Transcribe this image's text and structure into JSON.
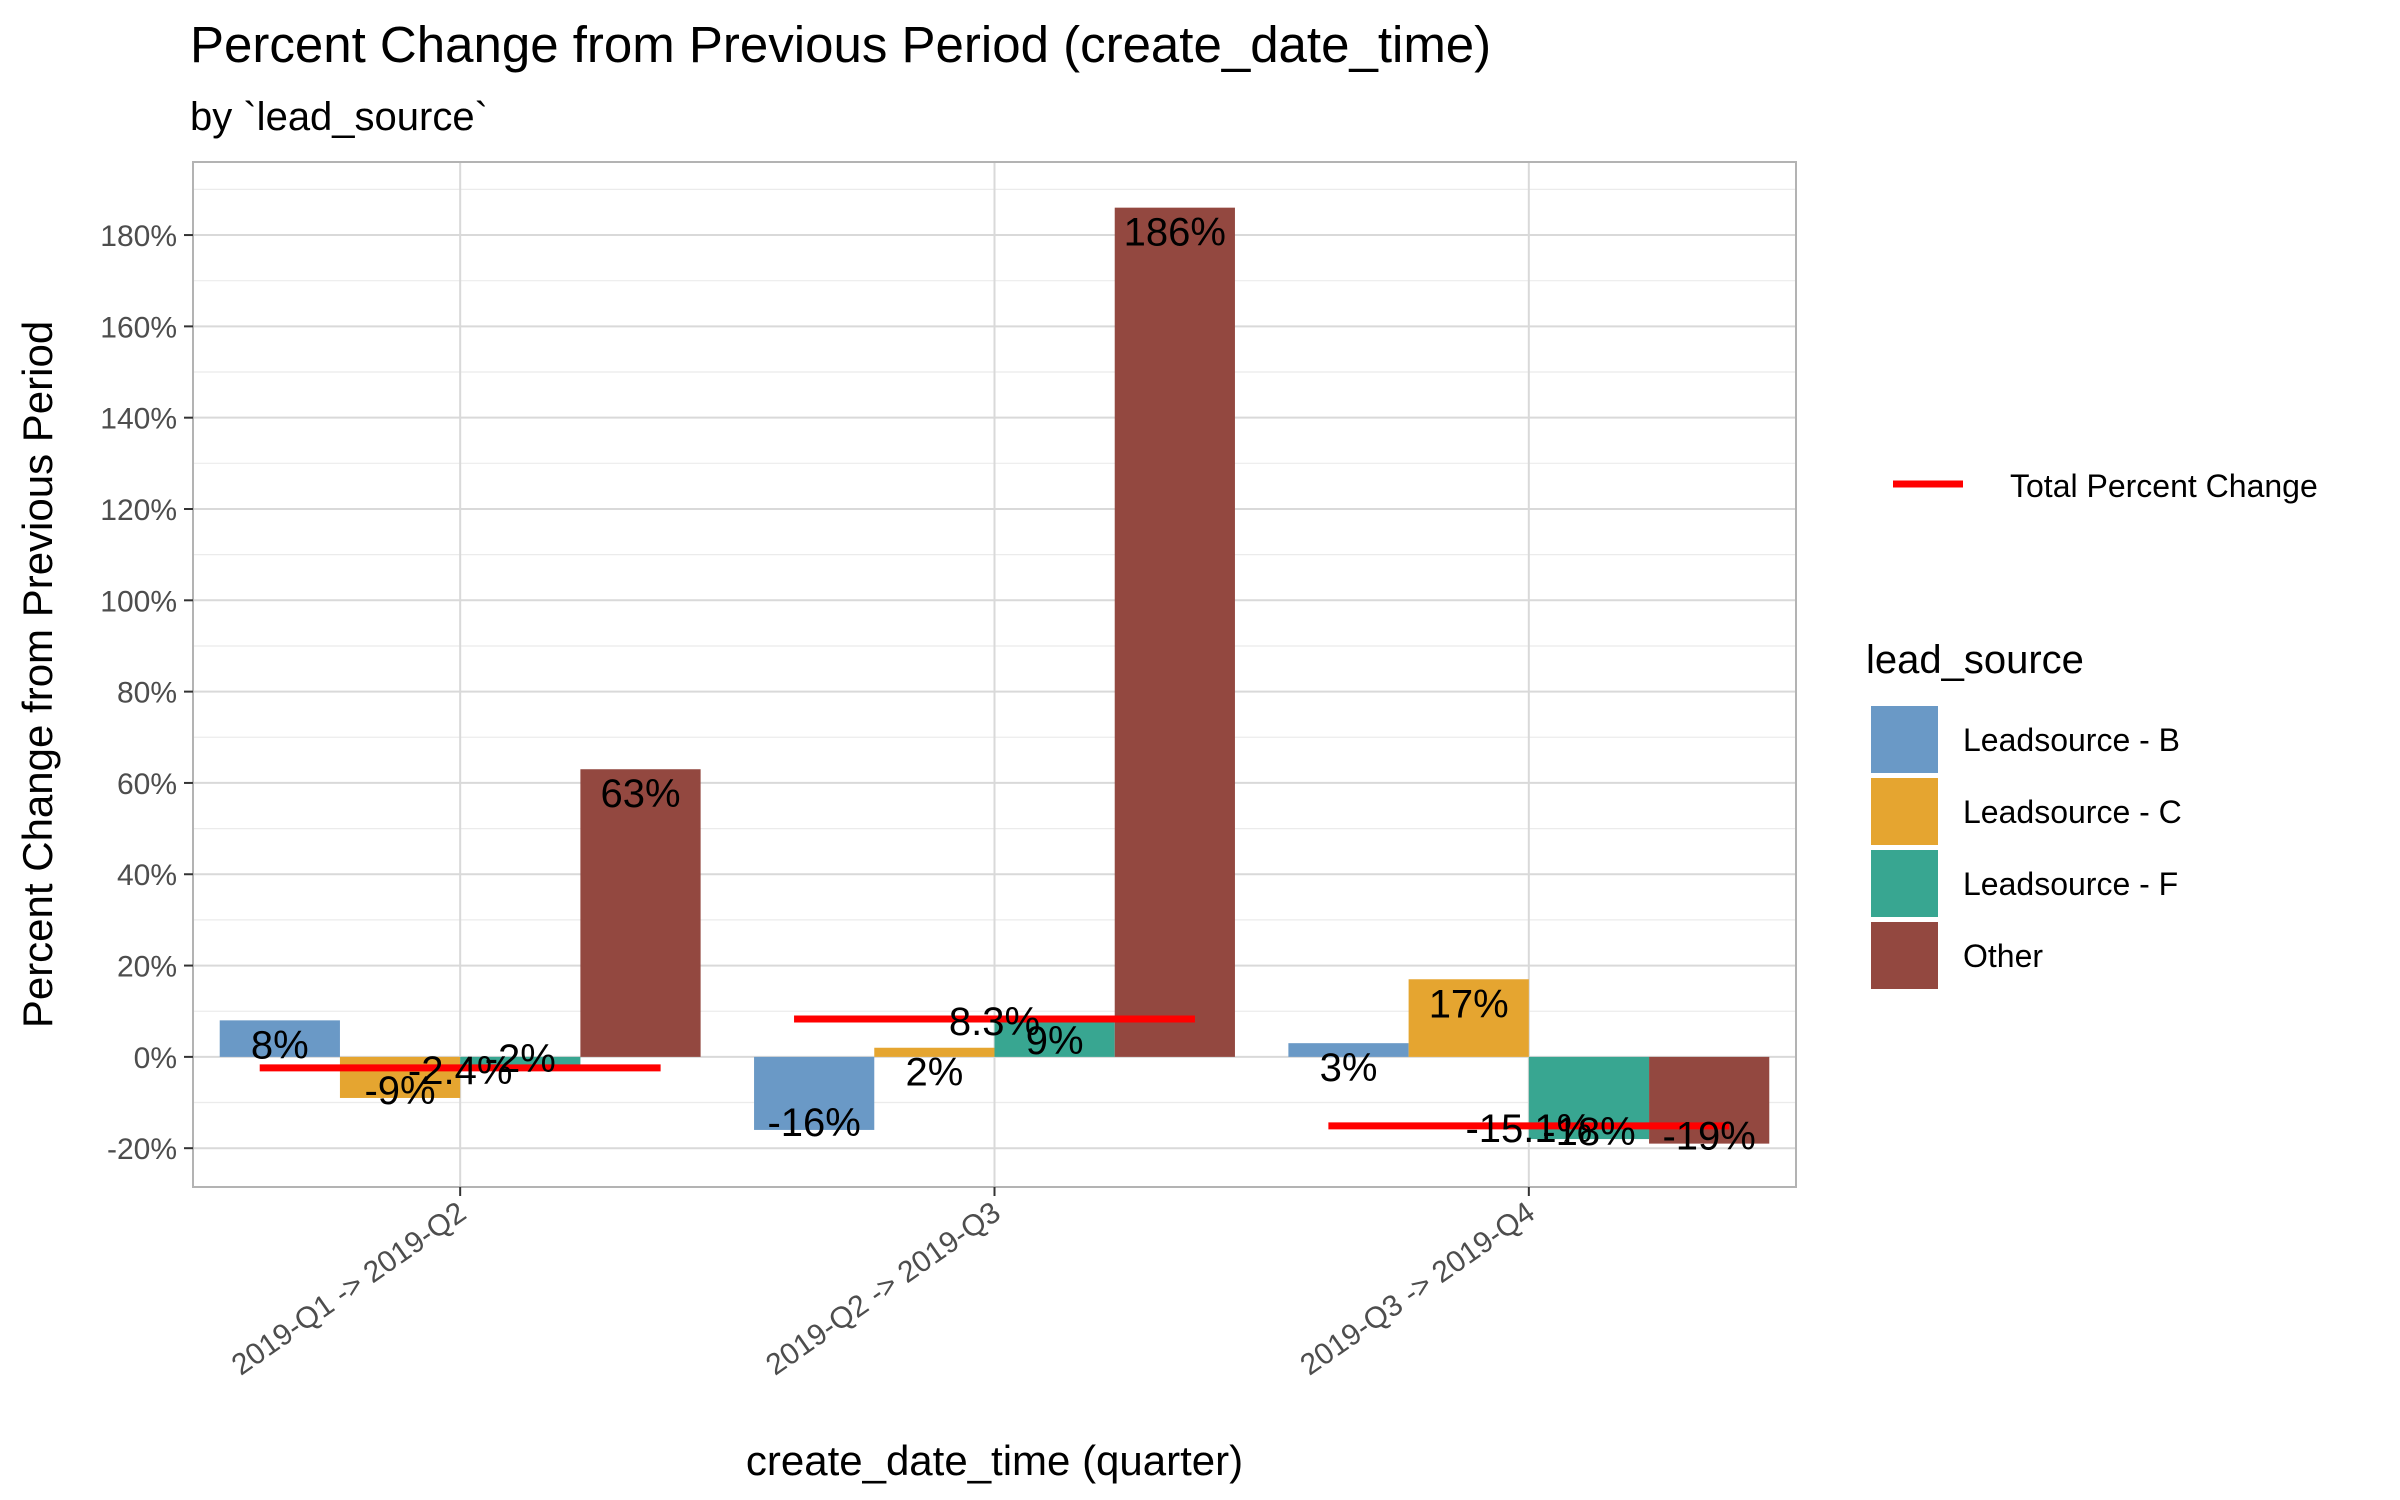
{
  "chart_data": {
    "type": "bar",
    "title": "Percent Change  from Previous Period (create_date_time)",
    "subtitle": "by `lead_source`",
    "xlabel": "create_date_time (quarter)",
    "ylabel": "Percent Change  from Previous Period",
    "categories": [
      "2019-Q1 -> 2019-Q2",
      "2019-Q2 -> 2019-Q3",
      "2019-Q3 -> 2019-Q4"
    ],
    "series": [
      {
        "name": "Leadsource - B",
        "color": "#6a99c6",
        "values": [
          8,
          -16,
          3
        ],
        "labels": [
          "8%",
          "-16%",
          "3%"
        ]
      },
      {
        "name": "Leadsource - C",
        "color": "#e5a530",
        "values": [
          -9,
          2,
          17
        ],
        "labels": [
          "-9%",
          "2%",
          "17%"
        ]
      },
      {
        "name": "Leadsource - F",
        "color": "#38a691",
        "values": [
          -2,
          9,
          -18
        ],
        "labels": [
          "-2%",
          "9%",
          "-18%"
        ]
      },
      {
        "name": "Other",
        "color": "#934840",
        "values": [
          63,
          186,
          -19
        ],
        "labels": [
          "63%",
          "186%",
          "-19%"
        ]
      }
    ],
    "total": {
      "name": "Total Percent Change",
      "color": "#ff0000",
      "values": [
        -2.4,
        8.3,
        -15.1
      ],
      "labels": [
        "-2.4%",
        "8.3%",
        "-15.1%"
      ]
    },
    "yticks": [
      -20,
      0,
      20,
      40,
      60,
      80,
      100,
      120,
      140,
      160,
      180
    ],
    "ytick_labels": [
      "-20%",
      "0%",
      "20%",
      "40%",
      "60%",
      "80%",
      "100%",
      "120%",
      "140%",
      "160%",
      "180%"
    ],
    "ylim": [
      -28.5,
      196
    ],
    "grid": true,
    "legend_title": "lead_source",
    "legend_position": "right"
  }
}
